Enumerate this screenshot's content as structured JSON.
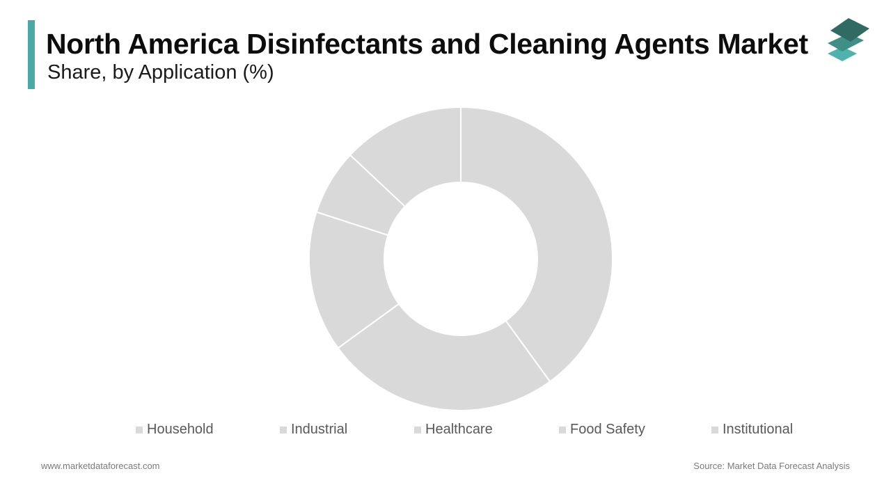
{
  "header": {
    "title": "North America Disinfectants and Cleaning Agents Market",
    "subtitle": "Share, by Application (%)",
    "accent_color": "#4aa8a6"
  },
  "logo": {
    "icon": "stacked-layers-icon",
    "colors": [
      "#2f6b62",
      "#3f8f86",
      "#4fb3ad"
    ]
  },
  "chart_data": {
    "type": "pie",
    "donut": true,
    "title": "",
    "categories": [
      "Household",
      "Industrial",
      "Healthcare",
      "Food Safety",
      "Institutional"
    ],
    "values": [
      40,
      25,
      15,
      7,
      13
    ],
    "slice_color": "#d9d9d9",
    "legend_position": "bottom"
  },
  "footer": {
    "website": "www.marketdataforecast.com",
    "source": "Source: Market Data Forecast Analysis"
  }
}
